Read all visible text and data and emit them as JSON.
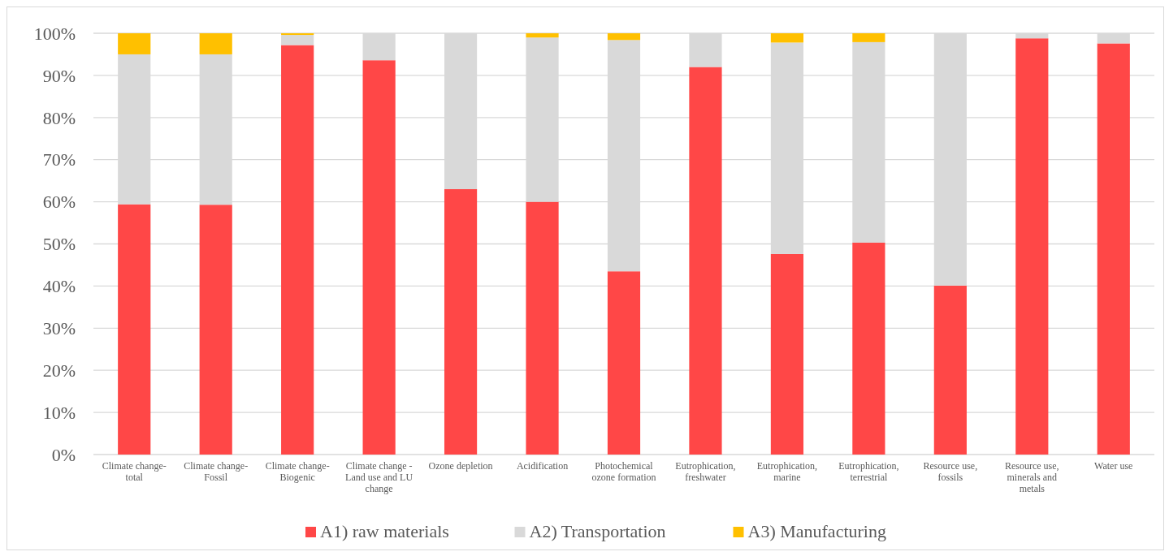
{
  "chart_data": {
    "type": "bar",
    "stacked": true,
    "categories": [
      "Climate change-total",
      "Climate change-Fossil",
      "Climate change-Biogenic",
      "Climate change - Land use and LU change",
      "Ozone depletion",
      "Acidification",
      "Photochemical ozone formation",
      "Eutrophication, freshwater",
      "Eutrophication, marine",
      "Eutrophication, terrestrial",
      "Resource use, fossils",
      "Resource use, minerals and metals",
      "Water use"
    ],
    "series": [
      {
        "name": "A1) raw materials",
        "color": "#ff4747",
        "values": [
          59.4,
          59.3,
          97.2,
          93.6,
          63.0,
          60.0,
          43.5,
          92.0,
          47.6,
          50.3,
          40.1,
          98.8,
          97.6
        ]
      },
      {
        "name": "A2) Transportation",
        "color": "#d9d9d9",
        "values": [
          35.6,
          35.7,
          2.4,
          6.4,
          37.0,
          39.0,
          54.9,
          8.0,
          50.2,
          47.6,
          59.9,
          1.2,
          2.4
        ]
      },
      {
        "name": "A3) Manufacturing",
        "color": "#ffc000",
        "values": [
          5.0,
          5.0,
          0.4,
          0,
          0,
          1.0,
          1.6,
          0,
          2.2,
          2.1,
          0,
          0,
          0
        ]
      }
    ],
    "ylim": [
      0,
      100
    ],
    "yticks": [
      {
        "value": 0,
        "label": "0%"
      },
      {
        "value": 10,
        "label": "10%"
      },
      {
        "value": 20,
        "label": "20%"
      },
      {
        "value": 30,
        "label": "30%"
      },
      {
        "value": 40,
        "label": "40%"
      },
      {
        "value": 50,
        "label": "50%"
      },
      {
        "value": 60,
        "label": "60%"
      },
      {
        "value": 70,
        "label": "70%"
      },
      {
        "value": 80,
        "label": "80%"
      },
      {
        "value": 90,
        "label": "90%"
      },
      {
        "value": 100,
        "label": "100%"
      }
    ],
    "grid": "y",
    "legend": "bottom"
  }
}
